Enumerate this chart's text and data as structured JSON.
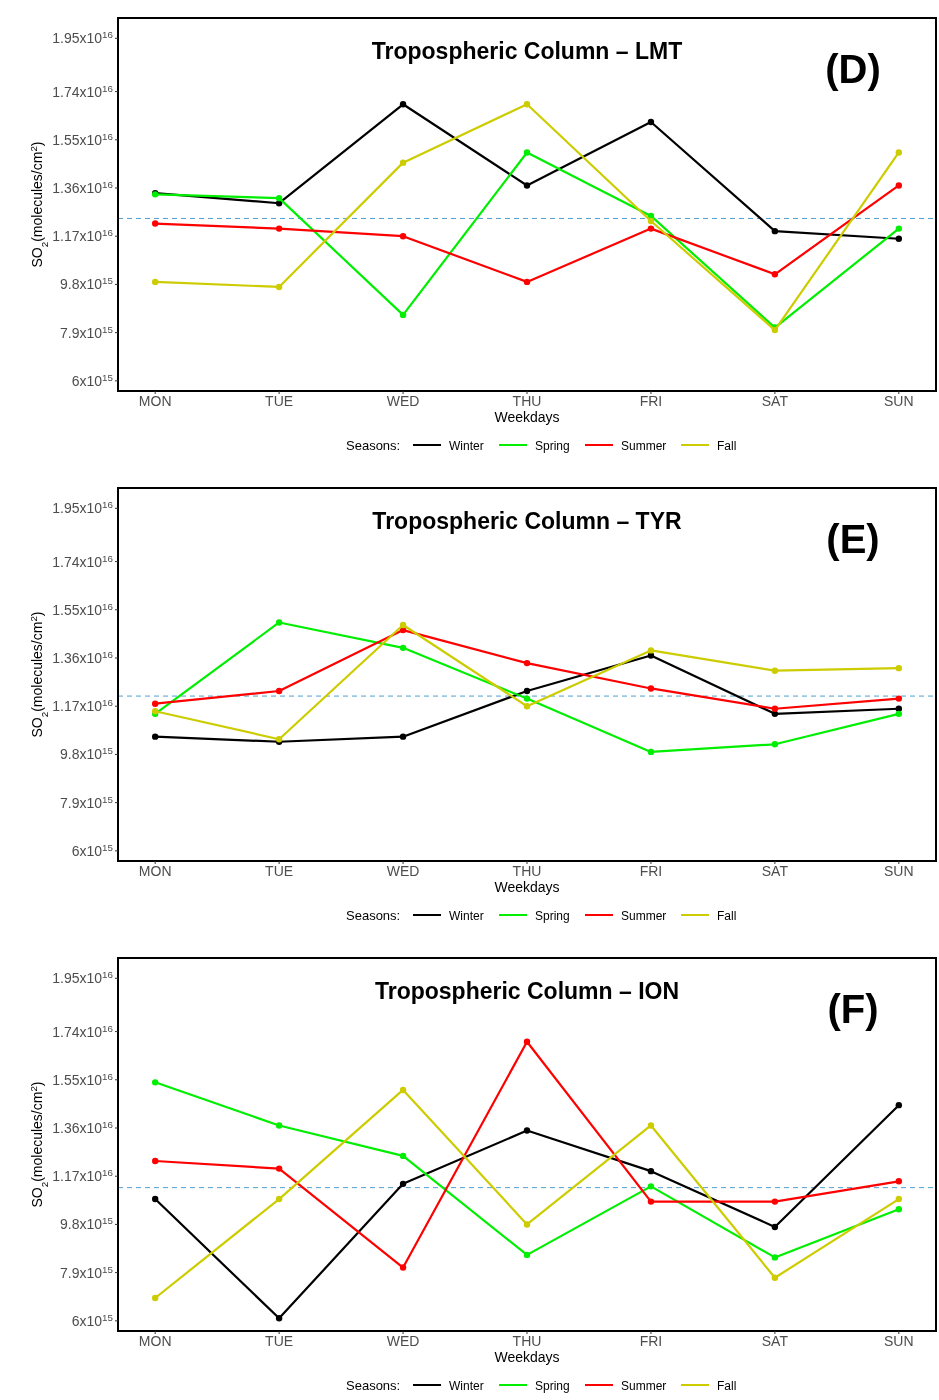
{
  "chart_data": [
    {
      "type": "line",
      "title": "Tropospheric Column – LMT",
      "xlabel": "Weekdays",
      "ylabel": "SO$_{2}$(molecules/cm$^{2}$)",
      "legend_title": "Seasons:",
      "legend": "bottom",
      "marker": "circle",
      "annotations": [
        "(D)"
      ],
      "categories": [
        "MON",
        "TUE",
        "WED",
        "THU",
        "FRI",
        "SAT",
        "SUN"
      ],
      "ylim": [
        5600000000000000.0,
        2.03e+16
      ],
      "yticks": [
        {
          "value": 6000000000000000.0,
          "label": "6x10$^{15}$"
        },
        {
          "value": 7900000000000000.0,
          "label": "7.9x10$^{15}$"
        },
        {
          "value": 9800000000000000.0,
          "label": "9.8x10$^{15}$"
        },
        {
          "value": 1.17e+16,
          "label": "1.17x10$^{16}$"
        },
        {
          "value": 1.36e+16,
          "label": "1.36x10$^{16}$"
        },
        {
          "value": 1.55e+16,
          "label": "1.55x10$^{16}$"
        },
        {
          "value": 1.74e+16,
          "label": "1.74x10$^{16}$"
        },
        {
          "value": 1.95e+16,
          "label": "1.95x10$^{16}$"
        }
      ],
      "ref_lines": [
        {
          "axis": "y",
          "value": 1.24e+16,
          "label": null,
          "color": "#4f9fd0",
          "line_style": "dashed"
        }
      ],
      "series": [
        {
          "name": "Winter",
          "color": "#000000",
          "values": [
            1.34e+16,
            1.3e+16,
            1.69e+16,
            1.37e+16,
            1.62e+16,
            1.19e+16,
            1.16e+16
          ]
        },
        {
          "name": "Spring",
          "color": "#00ee00",
          "values": [
            1.335e+16,
            1.32e+16,
            8600000000000000.0,
            1.5e+16,
            1.25e+16,
            8100000000000000.0,
            1.2e+16
          ]
        },
        {
          "name": "Summer",
          "color": "#ff0000",
          "values": [
            1.22e+16,
            1.2e+16,
            1.17e+16,
            9900000000000000.0,
            1.2e+16,
            1.02e+16,
            1.37e+16
          ]
        },
        {
          "name": "Fall",
          "color": "#cccc00",
          "values": [
            9900000000000000.0,
            9700000000000000.0,
            1.46e+16,
            1.69e+16,
            1.23e+16,
            8000000000000000.0,
            1.5e+16
          ]
        }
      ]
    },
    {
      "type": "line",
      "title": "Tropospheric Column – TYR",
      "xlabel": "Weekdays",
      "ylabel": "SO$_{2}$(molecules/cm$^{2}$)",
      "legend_title": "Seasons:",
      "legend": "bottom",
      "marker": "circle",
      "annotations": [
        "(E)"
      ],
      "categories": [
        "MON",
        "TUE",
        "WED",
        "THU",
        "FRI",
        "SAT",
        "SUN"
      ],
      "ylim": [
        5600000000000000.0,
        2.03e+16
      ],
      "yticks": [
        {
          "value": 6000000000000000.0,
          "label": "6x10$^{15}$"
        },
        {
          "value": 7900000000000000.0,
          "label": "7.9x10$^{15}$"
        },
        {
          "value": 9800000000000000.0,
          "label": "9.8x10$^{15}$"
        },
        {
          "value": 1.17e+16,
          "label": "1.17x10$^{16}$"
        },
        {
          "value": 1.36e+16,
          "label": "1.36x10$^{16}$"
        },
        {
          "value": 1.55e+16,
          "label": "1.55x10$^{16}$"
        },
        {
          "value": 1.74e+16,
          "label": "1.74x10$^{16}$"
        },
        {
          "value": 1.95e+16,
          "label": "1.95x10$^{16}$"
        }
      ],
      "ref_lines": [
        {
          "axis": "y",
          "value": 1.21e+16,
          "label": null,
          "color": "#4f9fd0",
          "line_style": "dashed"
        }
      ],
      "series": [
        {
          "name": "Winter",
          "color": "#000000",
          "values": [
            1.05e+16,
            1.03e+16,
            1.05e+16,
            1.23e+16,
            1.37e+16,
            1.14e+16,
            1.16e+16
          ]
        },
        {
          "name": "Spring",
          "color": "#00ee00",
          "values": [
            1.14e+16,
            1.5e+16,
            1.4e+16,
            1.2e+16,
            9900000000000000.0,
            1.02e+16,
            1.14e+16
          ]
        },
        {
          "name": "Summer",
          "color": "#ff0000",
          "values": [
            1.18e+16,
            1.23e+16,
            1.47e+16,
            1.34e+16,
            1.24e+16,
            1.16e+16,
            1.2e+16
          ]
        },
        {
          "name": "Fall",
          "color": "#cccc00",
          "values": [
            1.15e+16,
            1.04e+16,
            1.49e+16,
            1.17e+16,
            1.39e+16,
            1.31e+16,
            1.32e+16
          ]
        }
      ]
    },
    {
      "type": "line",
      "title": "Tropospheric Column – ION",
      "xlabel": "Weekdays",
      "ylabel": "SO$_{2}$(molecules/cm$^{2}$)",
      "legend_title": "Seasons:",
      "legend": "bottom",
      "marker": "circle",
      "annotations": [
        "(F)"
      ],
      "categories": [
        "MON",
        "TUE",
        "WED",
        "THU",
        "FRI",
        "SAT",
        "SUN"
      ],
      "ylim": [
        5600000000000000.0,
        2.03e+16
      ],
      "yticks": [
        {
          "value": 6000000000000000.0,
          "label": "6x10$^{15}$"
        },
        {
          "value": 7900000000000000.0,
          "label": "7.9x10$^{15}$"
        },
        {
          "value": 9800000000000000.0,
          "label": "9.8x10$^{15}$"
        },
        {
          "value": 1.17e+16,
          "label": "1.17x10$^{16}$"
        },
        {
          "value": 1.36e+16,
          "label": "1.36x10$^{16}$"
        },
        {
          "value": 1.55e+16,
          "label": "1.55x10$^{16}$"
        },
        {
          "value": 1.74e+16,
          "label": "1.74x10$^{16}$"
        },
        {
          "value": 1.95e+16,
          "label": "1.95x10$^{16}$"
        }
      ],
      "ref_lines": [
        {
          "axis": "y",
          "value": 1.125e+16,
          "label": null,
          "color": "#4f9fd0",
          "line_style": "dashed"
        }
      ],
      "series": [
        {
          "name": "Winter",
          "color": "#000000",
          "values": [
            1.08e+16,
            6100000000000000.0,
            1.14e+16,
            1.35e+16,
            1.19e+16,
            9700000000000000.0,
            1.45e+16
          ]
        },
        {
          "name": "Spring",
          "color": "#00ee00",
          "values": [
            1.54e+16,
            1.37e+16,
            1.25e+16,
            8600000000000000.0,
            1.13e+16,
            8500000000000000.0,
            1.04e+16
          ]
        },
        {
          "name": "Summer",
          "color": "#ff0000",
          "values": [
            1.23e+16,
            1.2e+16,
            8100000000000000.0,
            1.7e+16,
            1.07e+16,
            1.07e+16,
            1.15e+16
          ]
        },
        {
          "name": "Fall",
          "color": "#cccc00",
          "values": [
            6900000000000000.0,
            1.08e+16,
            1.51e+16,
            9800000000000000.0,
            1.37e+16,
            7700000000000000.0,
            1.08e+16
          ]
        }
      ]
    }
  ]
}
